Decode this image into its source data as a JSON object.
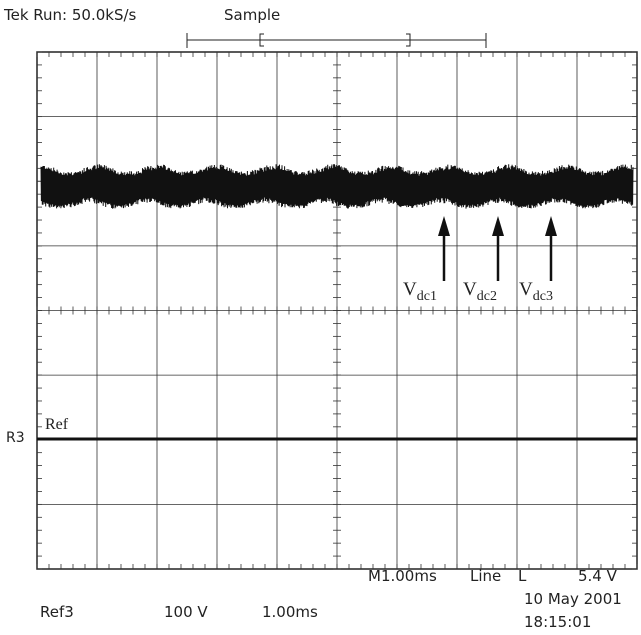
{
  "header": {
    "status": "Tek Run: 50.0kS/s",
    "mode": "Sample"
  },
  "labels": {
    "vdc1": "V",
    "vdc1_sub": "dc1",
    "vdc2": "V",
    "vdc2_sub": "dc2",
    "vdc3": "V",
    "vdc3_sub": "dc3",
    "ref": "Ref",
    "ref_marker": "R3"
  },
  "footer": {
    "timebase": "M1.00ms",
    "trigger_source": "Line",
    "trigger_slope_symbol": "L",
    "trigger_level": "5.4 V",
    "ref_name": "Ref3",
    "ref_scale": "100 V",
    "ref_time": "1.00ms",
    "date": "10 May 2001",
    "time": "18:15:01"
  },
  "colors": {
    "trace": "#111111",
    "grid": "#333333",
    "background": "#ffffff"
  },
  "icons": {
    "arrow": "arrow-up-icon"
  }
}
